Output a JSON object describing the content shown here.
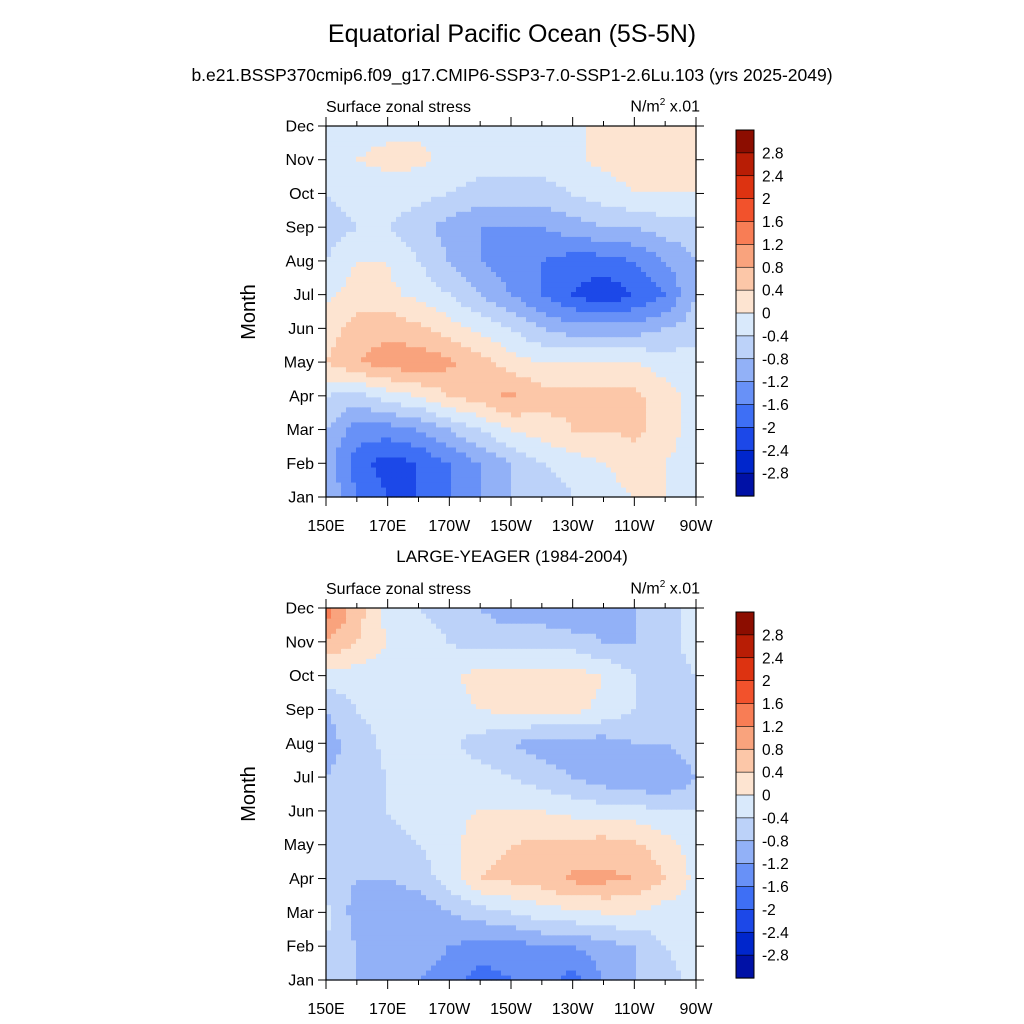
{
  "title": "Equatorial Pacific Ocean (5S-5N)",
  "subtitle": "b.e21.BSSP370cmip6.f09_g17.CMIP6-SSP3-7.0-SSP1-2.6Lu.103 (yrs 2025-2049)",
  "panels": [
    {
      "left_string": "Surface zonal stress",
      "right_string_base": "N/m",
      "right_string_exp": "2",
      "right_string_tail": " x.01",
      "ylabel": "Month",
      "title": ""
    },
    {
      "left_string": "Surface zonal stress",
      "right_string_base": "N/m",
      "right_string_exp": "2",
      "right_string_tail": " x.01",
      "ylabel": "Month",
      "title": "LARGE-YEAGER (1984-2004)"
    }
  ],
  "colors": {
    "c-3.2": "#00007f",
    "c-2.8": "#0011a6",
    "c-2.4": "#0026cc",
    "c-2.0": "#1c48e8",
    "c-1.6": "#3e6ff5",
    "c-1.2": "#6891f7",
    "c-0.8": "#92b1f7",
    "c-0.4": "#bcd2f9",
    "c0.0": "#d9e9fb",
    "c0.4": "#fde4d1",
    "c0.8": "#fcc7a8",
    "c1.2": "#f9a37d",
    "c1.6": "#f87d55",
    "c2.0": "#f2522c",
    "c2.4": "#dd3311",
    "c2.8": "#b81d05",
    "c3.2": "#8c0d00"
  },
  "chart_data": [
    {
      "type": "heatmap",
      "title": "Equatorial Pacific Ocean (5S-5N)",
      "subtitle": "b.e21.BSSP370cmip6.f09_g17.CMIP6-SSP3-7.0-SSP1-2.6Lu.103 (yrs 2025-2049)",
      "left_string": "Surface zonal stress",
      "units": "N/m2 x.01",
      "xlabel": "",
      "ylabel": "Month",
      "x_ticks": [
        "150E",
        "170E",
        "170W",
        "150W",
        "130W",
        "110W",
        "90W"
      ],
      "y_ticks": [
        "Jan",
        "Feb",
        "Mar",
        "Apr",
        "May",
        "Jun",
        "Jul",
        "Aug",
        "Sep",
        "Oct",
        "Nov",
        "Dec"
      ],
      "colorbar_levels": [
        2.8,
        2.4,
        2,
        1.6,
        1.2,
        0.8,
        0.4,
        0,
        -0.4,
        -0.8,
        -1.2,
        -1.6,
        -2,
        -2.4,
        -2.8
      ],
      "x_lon": [
        150,
        160,
        170,
        180,
        190,
        200,
        210,
        220,
        230,
        240,
        250,
        260,
        270
      ],
      "grid": [
        [
          -0.4,
          -1.2,
          -1.6,
          -1.6,
          -1.2,
          -0.8,
          -0.4,
          -0.4,
          0.0,
          0.2,
          0.4,
          0.4,
          0.2
        ],
        [
          -0.6,
          -1.4,
          -1.8,
          -1.6,
          -1.2,
          -0.8,
          -0.4,
          0.0,
          0.2,
          0.4,
          0.6,
          0.4,
          0.2
        ],
        [
          -0.4,
          -1.0,
          -1.0,
          -0.8,
          -0.4,
          0.0,
          0.4,
          0.6,
          0.8,
          0.8,
          0.9,
          0.6,
          0.2
        ],
        [
          0.0,
          -0.2,
          0.2,
          0.4,
          0.8,
          1.0,
          1.3,
          1.0,
          0.9,
          0.9,
          0.9,
          0.6,
          0.2
        ],
        [
          0.8,
          1.2,
          1.4,
          1.5,
          1.3,
          1.0,
          0.6,
          0.4,
          0.4,
          0.4,
          0.4,
          0.2,
          0.2
        ],
        [
          0.6,
          1.0,
          1.1,
          0.9,
          0.6,
          0.3,
          0.0,
          -0.4,
          -0.6,
          -0.6,
          -0.6,
          -0.4,
          -0.2
        ],
        [
          0.3,
          0.6,
          0.5,
          0.3,
          0.0,
          -0.4,
          -0.8,
          -1.2,
          -1.6,
          -1.9,
          -1.6,
          -1.2,
          -0.4
        ],
        [
          0.0,
          0.4,
          0.4,
          0.0,
          -0.4,
          -0.8,
          -1.0,
          -1.2,
          -1.4,
          -1.4,
          -1.2,
          -0.8,
          -0.4
        ],
        [
          -0.2,
          0.0,
          0.0,
          -0.2,
          -0.6,
          -0.8,
          -0.8,
          -0.8,
          -0.6,
          -0.4,
          -0.4,
          -0.2,
          -0.2
        ],
        [
          0.0,
          0.2,
          0.2,
          0.1,
          0.0,
          -0.2,
          -0.2,
          -0.2,
          0.0,
          0.2,
          0.4,
          0.4,
          0.4
        ],
        [
          0.2,
          0.4,
          0.5,
          0.5,
          0.3,
          0.2,
          0.2,
          0.2,
          0.3,
          0.5,
          0.6,
          0.6,
          0.5
        ],
        [
          0.2,
          0.3,
          0.3,
          0.3,
          0.3,
          0.2,
          0.2,
          0.3,
          0.3,
          0.5,
          0.6,
          0.6,
          0.5
        ]
      ]
    },
    {
      "type": "heatmap",
      "title": "LARGE-YEAGER (1984-2004)",
      "left_string": "Surface zonal stress",
      "units": "N/m2 x.01",
      "xlabel": "",
      "ylabel": "Month",
      "x_ticks": [
        "150E",
        "170E",
        "170W",
        "150W",
        "130W",
        "110W",
        "90W"
      ],
      "y_ticks": [
        "Jan",
        "Feb",
        "Mar",
        "Apr",
        "May",
        "Jun",
        "Jul",
        "Aug",
        "Sep",
        "Oct",
        "Nov",
        "Dec"
      ],
      "colorbar_levels": [
        2.8,
        2.4,
        2,
        1.6,
        1.2,
        0.8,
        0.4,
        0,
        -0.4,
        -0.8,
        -1.2,
        -1.6,
        -2,
        -2.4,
        -2.8
      ],
      "x_lon": [
        150,
        160,
        170,
        180,
        190,
        200,
        210,
        220,
        230,
        240,
        250,
        260,
        270
      ],
      "grid": [
        [
          -0.2,
          -0.4,
          -0.6,
          -0.8,
          -1.0,
          -1.4,
          -1.2,
          -1.0,
          -1.4,
          -0.8,
          -0.4,
          -0.2,
          0.2
        ],
        [
          0.0,
          -0.4,
          -0.6,
          -0.6,
          -0.8,
          -1.0,
          -1.0,
          -0.8,
          -0.8,
          -0.6,
          -0.4,
          0.0,
          0.2
        ],
        [
          0.1,
          -0.6,
          -0.8,
          -0.8,
          -0.4,
          -0.2,
          0.0,
          0.2,
          0.3,
          0.4,
          0.4,
          0.2,
          0.2
        ],
        [
          -0.2,
          -0.4,
          -0.4,
          -0.2,
          0.2,
          0.8,
          0.9,
          1.0,
          1.3,
          1.3,
          1.2,
          0.8,
          0.3
        ],
        [
          -0.2,
          -0.4,
          -0.2,
          0.0,
          0.2,
          0.7,
          0.8,
          0.9,
          0.9,
          1.0,
          0.9,
          0.6,
          0.2
        ],
        [
          -0.2,
          -0.2,
          0.0,
          0.2,
          0.3,
          0.4,
          0.4,
          0.4,
          0.3,
          0.2,
          0.2,
          0.0,
          0.0
        ],
        [
          -0.4,
          -0.2,
          0.0,
          0.2,
          0.2,
          0.2,
          0.0,
          -0.2,
          -0.4,
          -0.6,
          -0.8,
          -0.8,
          -0.4
        ],
        [
          -0.6,
          -0.2,
          0.1,
          0.2,
          0.1,
          -0.2,
          -0.4,
          -0.6,
          -0.6,
          -0.6,
          -0.4,
          -0.4,
          -0.2
        ],
        [
          -0.4,
          0.0,
          0.2,
          0.2,
          0.2,
          0.4,
          0.5,
          0.5,
          0.5,
          0.3,
          0.0,
          -0.2,
          0.0
        ],
        [
          0.2,
          0.2,
          0.2,
          0.2,
          0.3,
          0.6,
          0.6,
          0.6,
          0.6,
          0.4,
          0.0,
          -0.2,
          0.0
        ],
        [
          1.2,
          0.8,
          0.4,
          0.2,
          0.0,
          -0.2,
          -0.2,
          -0.2,
          -0.2,
          -0.4,
          -0.4,
          -0.2,
          0.2
        ],
        [
          1.8,
          1.0,
          0.2,
          0.0,
          -0.2,
          -0.4,
          -0.6,
          -0.6,
          -0.8,
          -0.6,
          -0.4,
          -0.2,
          0.2
        ]
      ]
    }
  ]
}
